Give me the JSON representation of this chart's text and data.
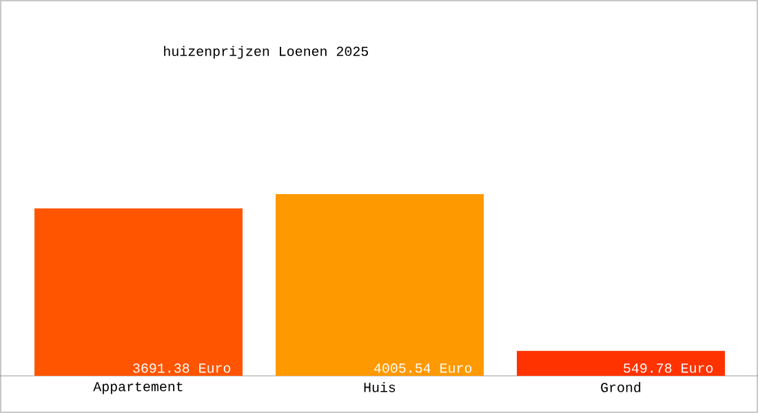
{
  "chart_data": {
    "type": "bar",
    "title": "huizenprijzen Loenen 2025",
    "categories": [
      "Appartement",
      "Huis",
      "Grond"
    ],
    "values": [
      3691.38,
      4005.54,
      549.78
    ],
    "colors": [
      "#ff5500",
      "#ff9900",
      "#ff3300"
    ],
    "value_labels": [
      "3691.38 Euro",
      "4005.54 Euro",
      "549.78 Euro"
    ],
    "grid": false
  }
}
